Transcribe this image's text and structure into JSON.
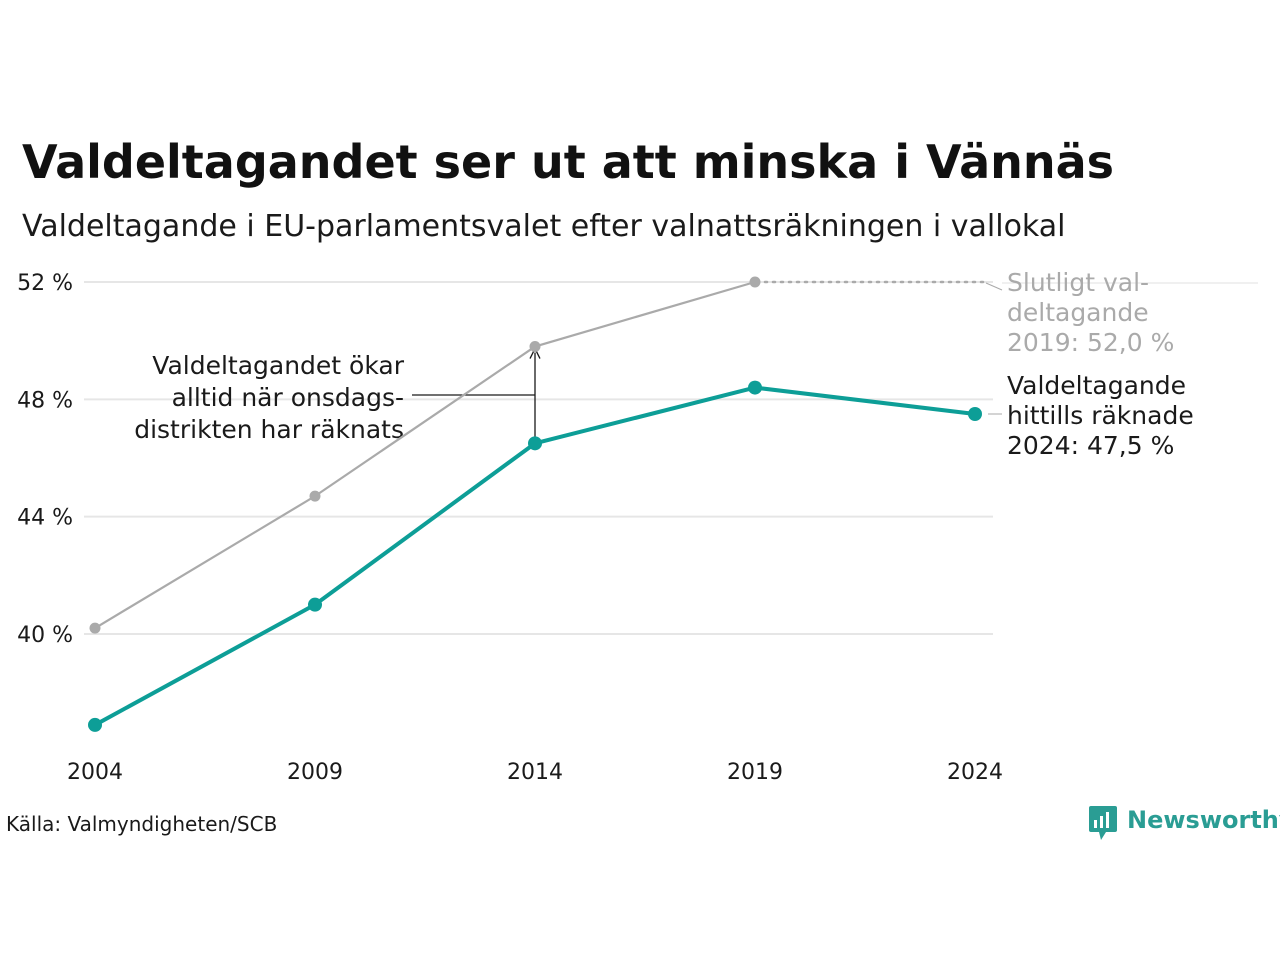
{
  "title": "Valdeltagandet ser ut att minska i Vännäs",
  "subtitle": "Valdeltagande i EU-parlamentsvalet efter valnattsräkningen i vallokal",
  "source": "Källa: Valmyndigheten/SCB",
  "brand": "Newsworthy",
  "colors": {
    "final": "#aaaaaa",
    "counted": "#0d9e97",
    "grid": "#e6e6e6",
    "text": "#1a1a1a",
    "brand": "#2a9d94"
  },
  "annotation": [
    "Valdeltagandet ökar",
    "alltid när onsdags-",
    "distrikten har räknats"
  ],
  "label_final": [
    "Slutligt val-",
    "deltagande",
    "2019: 52,0 %"
  ],
  "label_counted": [
    "Valdeltagande",
    "hittills räknade",
    "2024: 47,5 %"
  ],
  "chart_data": {
    "type": "line",
    "x": [
      2004,
      2009,
      2014,
      2019,
      2024
    ],
    "ylim": [
      36.9,
      53
    ],
    "yticks": [
      40,
      44,
      48,
      52
    ],
    "ytick_labels": [
      "40 %",
      "44 %",
      "48 %",
      "52 %"
    ],
    "xtick_labels": [
      "2004",
      "2009",
      "2014",
      "2019",
      "2024"
    ],
    "grid": true,
    "series": [
      {
        "key": "final",
        "values": [
          40.2,
          44.7,
          49.8,
          52.0,
          null
        ]
      },
      {
        "key": "counted",
        "values": [
          36.9,
          41.0,
          46.5,
          48.4,
          47.5
        ]
      }
    ]
  }
}
